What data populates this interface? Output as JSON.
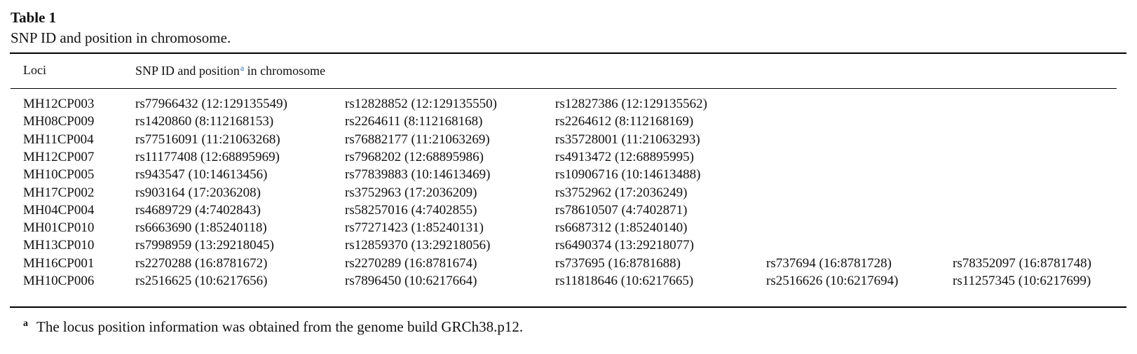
{
  "caption": {
    "label": "Table 1",
    "title": "SNP ID and position in chromosome."
  },
  "header": {
    "loci": "Loci",
    "snp_prefix": "SNP ID and position",
    "snp_mark": "a",
    "snp_suffix": " in chromosome"
  },
  "rows": [
    {
      "locus": "MH12CP003",
      "snps": [
        "rs77966432 (12:129135549)",
        "rs12828852 (12:129135550)",
        "rs12827386 (12:129135562)",
        "",
        ""
      ]
    },
    {
      "locus": "MH08CP009",
      "snps": [
        "rs1420860 (8:112168153)",
        "rs2264611 (8:112168168)",
        "rs2264612 (8:112168169)",
        "",
        ""
      ]
    },
    {
      "locus": "MH11CP004",
      "snps": [
        "rs77516091 (11:21063268)",
        "rs76882177 (11:21063269)",
        "rs35728001 (11:21063293)",
        "",
        ""
      ]
    },
    {
      "locus": "MH12CP007",
      "snps": [
        "rs11177408 (12:68895969)",
        "rs7968202 (12:68895986)",
        "rs4913472 (12:68895995)",
        "",
        ""
      ]
    },
    {
      "locus": "MH10CP005",
      "snps": [
        "rs943547 (10:14613456)",
        "rs77839883 (10:14613469)",
        "rs10906716 (10:14613488)",
        "",
        ""
      ]
    },
    {
      "locus": "MH17CP002",
      "snps": [
        "rs903164 (17:2036208)",
        "rs3752963 (17:2036209)",
        "rs3752962 (17:2036249)",
        "",
        ""
      ]
    },
    {
      "locus": "MH04CP004",
      "snps": [
        "rs4689729 (4:7402843)",
        "rs58257016 (4:7402855)",
        "rs78610507 (4:7402871)",
        "",
        ""
      ]
    },
    {
      "locus": "MH01CP010",
      "snps": [
        "rs6663690 (1:85240118)",
        "rs77271423 (1:85240131)",
        "rs6687312 (1:85240140)",
        "",
        ""
      ]
    },
    {
      "locus": "MH13CP010",
      "snps": [
        "rs7998959 (13:29218045)",
        "rs12859370 (13:29218056)",
        "rs6490374 (13:29218077)",
        "",
        ""
      ]
    },
    {
      "locus": "MH16CP001",
      "snps": [
        "rs2270288 (16:8781672)",
        "rs2270289 (16:8781674)",
        "rs737695 (16:8781688)",
        "rs737694 (16:8781728)",
        "rs78352097 (16:8781748)"
      ]
    },
    {
      "locus": "MH10CP006",
      "snps": [
        "rs2516625 (10:6217656)",
        "rs7896450 (10:6217664)",
        "rs11818646 (10:6217665)",
        "rs2516626 (10:6217694)",
        "rs11257345 (10:6217699)"
      ]
    }
  ],
  "footnote": {
    "mark": "a",
    "text": "The locus position information was obtained from the genome build GRCh38.p12."
  }
}
